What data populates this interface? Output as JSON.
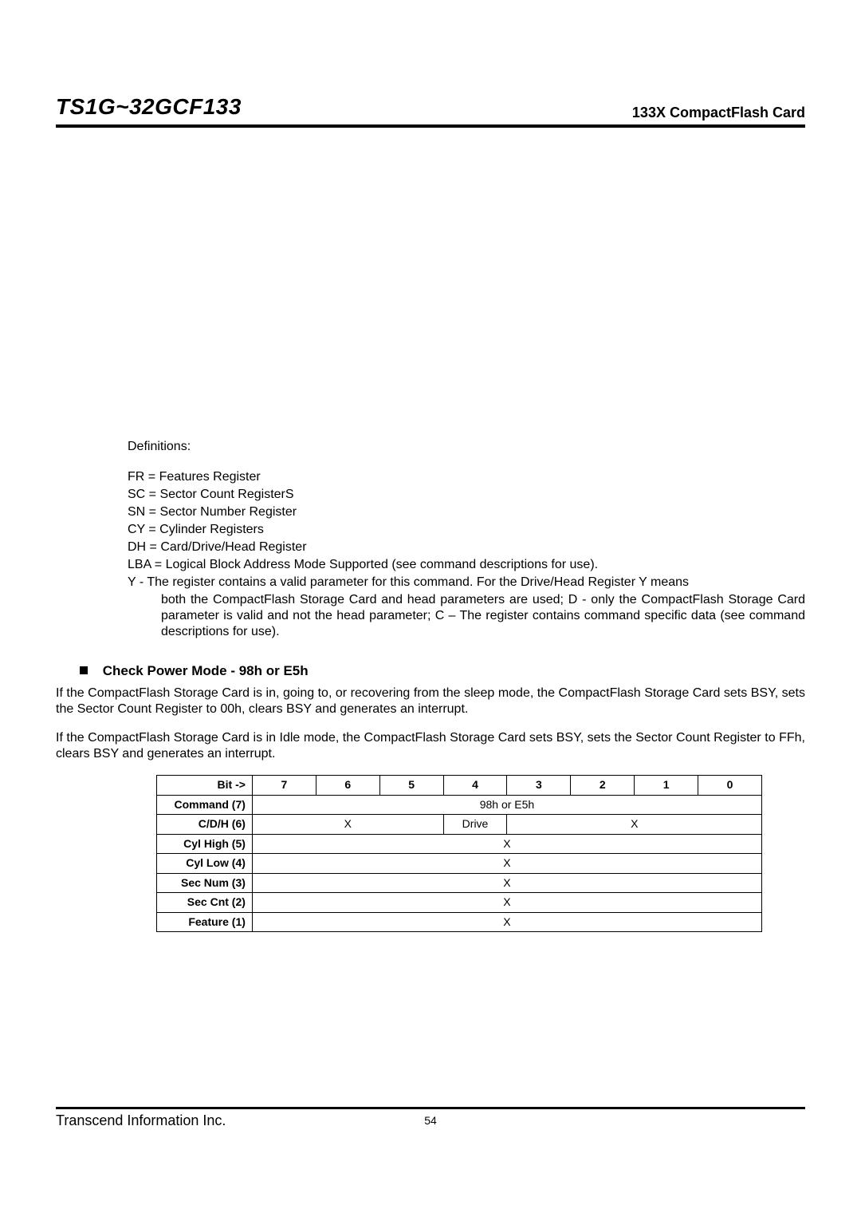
{
  "header": {
    "title_left": "TS1G~32GCF133",
    "title_right": "133X CompactFlash Card"
  },
  "definitions": {
    "label": "Definitions:",
    "lines": [
      "FR = Features Register",
      "SC = Sector Count RegisterS",
      "SN = Sector Number Register",
      "CY = Cylinder Registers",
      "DH = Card/Drive/Head Register",
      "LBA = Logical Block Address Mode Supported (see command descriptions for use)."
    ],
    "y_line": "Y - The register contains a valid parameter for this command. For the Drive/Head Register Y means",
    "y_cont": "both the CompactFlash Storage Card and head parameters are used; D - only the CompactFlash Storage Card parameter is valid and not the head parameter; C – The register contains command specific data (see command descriptions for use)."
  },
  "section": {
    "title": "Check Power Mode - 98h or E5h",
    "para1": "If the CompactFlash Storage Card is in, going to, or recovering from the sleep mode, the CompactFlash Storage Card sets BSY, sets the Sector Count Register to 00h, clears BSY and generates an interrupt.",
    "para2": "If the CompactFlash Storage Card is in Idle mode, the CompactFlash Storage Card sets BSY, sets the Sector Count Register to FFh, clears BSY and generates an interrupt."
  },
  "table": {
    "bit_label": "Bit ->",
    "bits": [
      "7",
      "6",
      "5",
      "4",
      "3",
      "2",
      "1",
      "0"
    ],
    "rows": [
      {
        "label": "Command (7)",
        "cells": [
          {
            "span": 8,
            "text": "98h or E5h"
          }
        ]
      },
      {
        "label": "C/D/H (6)",
        "cells": [
          {
            "span": 3,
            "text": "X"
          },
          {
            "span": 1,
            "text": "Drive"
          },
          {
            "span": 4,
            "text": "X"
          }
        ]
      },
      {
        "label": "Cyl High (5)",
        "cells": [
          {
            "span": 8,
            "text": "X"
          }
        ]
      },
      {
        "label": "Cyl Low (4)",
        "cells": [
          {
            "span": 8,
            "text": "X"
          }
        ]
      },
      {
        "label": "Sec Num (3)",
        "cells": [
          {
            "span": 8,
            "text": "X"
          }
        ]
      },
      {
        "label": "Sec Cnt (2)",
        "cells": [
          {
            "span": 8,
            "text": "X"
          }
        ]
      },
      {
        "label": "Feature (1)",
        "cells": [
          {
            "span": 8,
            "text": "X"
          }
        ]
      }
    ]
  },
  "footer": {
    "company": "Transcend Information Inc.",
    "page": "54"
  }
}
